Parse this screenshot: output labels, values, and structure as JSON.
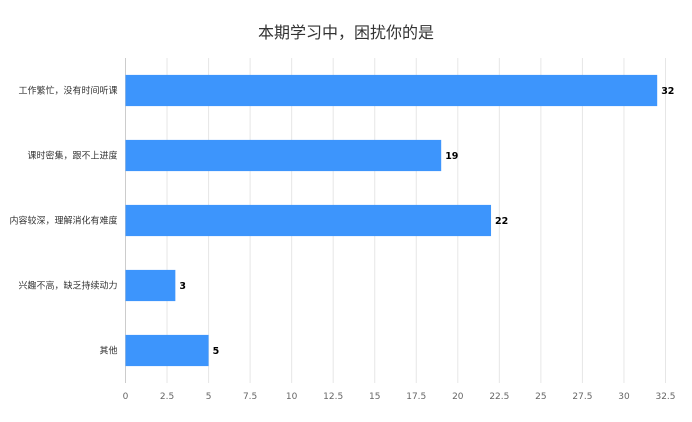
{
  "chart_data": {
    "type": "bar",
    "orientation": "horizontal",
    "title": "本期学习中，困扰你的是",
    "categories": [
      "工作繁忙，没有时间听课",
      "课时密集，跟不上进度",
      "内容较深，理解消化有难度",
      "兴趣不高，缺乏持续动力",
      "其他"
    ],
    "values": [
      32,
      19,
      22,
      3,
      5
    ],
    "x_ticks": [
      "0",
      "2.5",
      "5",
      "7.5",
      "10",
      "12.5",
      "15",
      "17.5",
      "20",
      "22.5",
      "25",
      "27.5",
      "30",
      "32.5"
    ],
    "xlim": [
      0,
      32.5
    ],
    "grid": "vertical",
    "bar_color": "#3d95fc",
    "xlabel": "",
    "ylabel": ""
  }
}
